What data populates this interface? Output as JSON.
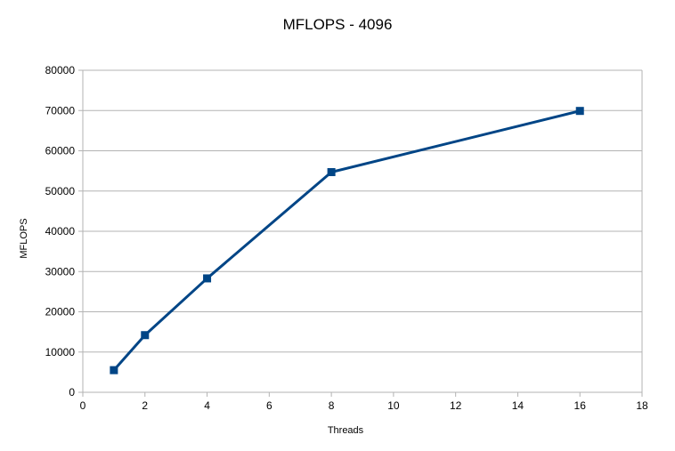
{
  "chart_data": {
    "type": "scatter",
    "title": "MFLOPS - 4096",
    "xlabel": "Threads",
    "ylabel": "MFLOPS",
    "xlim": [
      0,
      18
    ],
    "ylim": [
      0,
      80000
    ],
    "xticks": [
      0,
      2,
      4,
      6,
      8,
      10,
      12,
      14,
      16,
      18
    ],
    "yticks": [
      0,
      10000,
      20000,
      30000,
      40000,
      50000,
      60000,
      70000,
      80000
    ],
    "grid": "horizontal",
    "legend": "none",
    "series": [
      {
        "x": [
          1,
          2,
          4,
          8,
          16
        ],
        "y": [
          5500,
          14200,
          28300,
          54700,
          69900
        ],
        "color": "#004586",
        "marker": "square",
        "line": "straight"
      }
    ]
  }
}
